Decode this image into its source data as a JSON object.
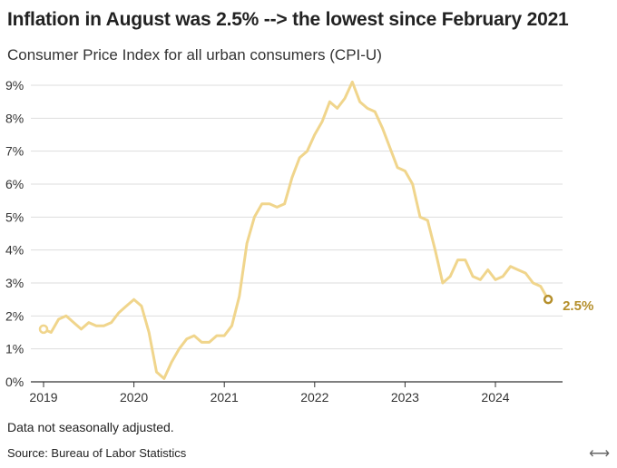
{
  "header": {
    "title": "Inflation in August was 2.5% --> the lowest since February 2021",
    "subtitle": "Consumer Price Index for all urban consumers (CPI-U)"
  },
  "footer": {
    "note": "Data not seasonally adjusted.",
    "source": "Source: Bureau of Labor Statistics",
    "expand_glyph": "⟷"
  },
  "chart_data": {
    "type": "line",
    "title": "Inflation in August was 2.5% --> the lowest since February 2021",
    "subtitle": "Consumer Price Index for all urban consumers (CPI-U)",
    "xlabel": "",
    "ylabel": "",
    "x_ticks": [
      "2019",
      "2020",
      "2021",
      "2022",
      "2023",
      "2024"
    ],
    "y_ticks": [
      "0%",
      "1%",
      "2%",
      "3%",
      "4%",
      "5%",
      "6%",
      "7%",
      "8%",
      "9%"
    ],
    "ylim": [
      0,
      9
    ],
    "grid": true,
    "line_color": "#f0d58c",
    "annotation_color": "#b58f2b",
    "end_label": "2.5%",
    "series": [
      {
        "x": [
          "2019-01",
          "2019-02",
          "2019-03",
          "2019-04",
          "2019-05",
          "2019-06",
          "2019-07",
          "2019-08",
          "2019-09",
          "2019-10",
          "2019-11",
          "2019-12",
          "2020-01",
          "2020-02",
          "2020-03",
          "2020-04",
          "2020-05",
          "2020-06",
          "2020-07",
          "2020-08",
          "2020-09",
          "2020-10",
          "2020-11",
          "2020-12",
          "2021-01",
          "2021-02",
          "2021-03",
          "2021-04",
          "2021-05",
          "2021-06",
          "2021-07",
          "2021-08",
          "2021-09",
          "2021-10",
          "2021-11",
          "2021-12",
          "2022-01",
          "2022-02",
          "2022-03",
          "2022-04",
          "2022-05",
          "2022-06",
          "2022-07",
          "2022-08",
          "2022-09",
          "2022-10",
          "2022-11",
          "2022-12",
          "2023-01",
          "2023-02",
          "2023-03",
          "2023-04",
          "2023-05",
          "2023-06",
          "2023-07",
          "2023-08",
          "2023-09",
          "2023-10",
          "2023-11",
          "2023-12",
          "2024-01",
          "2024-02",
          "2024-03",
          "2024-04",
          "2024-05",
          "2024-06",
          "2024-07",
          "2024-08"
        ],
        "values": [
          1.6,
          1.5,
          1.9,
          2.0,
          1.8,
          1.6,
          1.8,
          1.7,
          1.7,
          1.8,
          2.1,
          2.3,
          2.5,
          2.3,
          1.5,
          0.3,
          0.1,
          0.6,
          1.0,
          1.3,
          1.4,
          1.2,
          1.2,
          1.4,
          1.4,
          1.7,
          2.6,
          4.2,
          5.0,
          5.4,
          5.4,
          5.3,
          5.4,
          6.2,
          6.8,
          7.0,
          7.5,
          7.9,
          8.5,
          8.3,
          8.6,
          9.1,
          8.5,
          8.3,
          8.2,
          7.7,
          7.1,
          6.5,
          6.4,
          6.0,
          5.0,
          4.9,
          4.0,
          3.0,
          3.2,
          3.7,
          3.7,
          3.2,
          3.1,
          3.4,
          3.1,
          3.2,
          3.5,
          3.4,
          3.3,
          3.0,
          2.9,
          2.5
        ]
      }
    ]
  }
}
